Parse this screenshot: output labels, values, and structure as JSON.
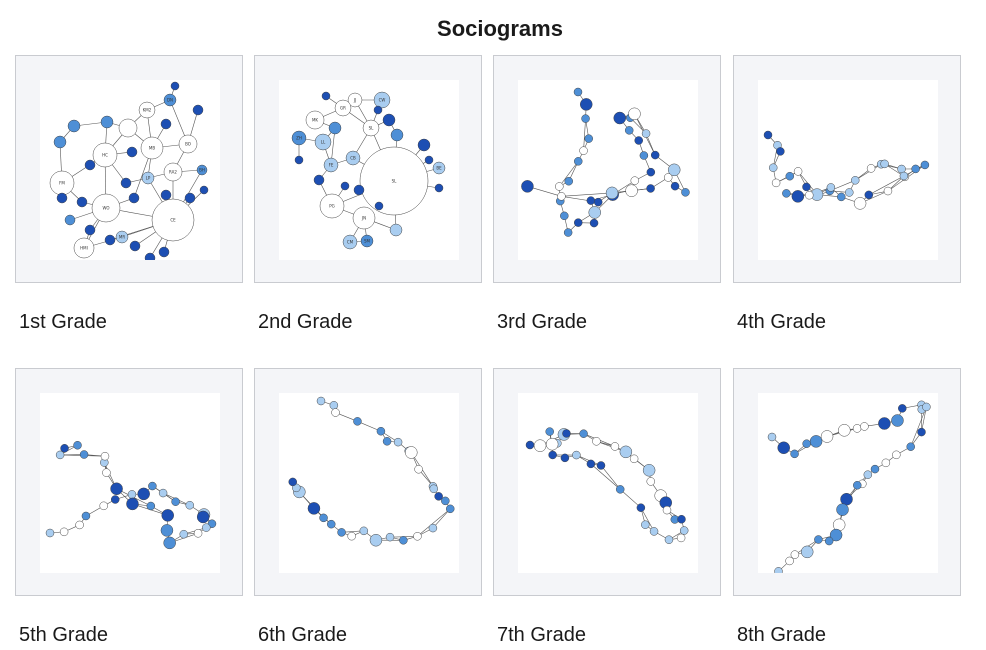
{
  "header": {
    "title": "Sociograms"
  },
  "colors": {
    "node_dark": "#1d4fb3",
    "node_mid": "#4e8fd6",
    "node_light": "#a9cdf0",
    "node_white": "#ffffff",
    "edge": "#555555"
  },
  "panels": [
    {
      "label": "1st Grade",
      "node_texts": [
        "KM2",
        "DN",
        "HC",
        "MB",
        "BO",
        "RA2",
        "FM",
        "MN2",
        "WO",
        "CE",
        "HMI",
        "LP",
        "MR",
        "SF",
        "BH"
      ]
    },
    {
      "label": "2nd Grade",
      "node_texts": [
        "CW",
        "JJ",
        "GR",
        "MK",
        "SL",
        "ZH",
        "LL",
        "FE",
        "CB",
        "PG",
        "JN",
        "SM",
        "BE",
        "CM"
      ]
    },
    {
      "label": "3rd Grade",
      "node_texts": []
    },
    {
      "label": "4th Grade",
      "node_texts": []
    },
    {
      "label": "5th Grade",
      "node_texts": []
    },
    {
      "label": "6th Grade",
      "node_texts": []
    },
    {
      "label": "7th Grade",
      "node_texts": []
    },
    {
      "label": "8th Grade",
      "node_texts": []
    }
  ]
}
